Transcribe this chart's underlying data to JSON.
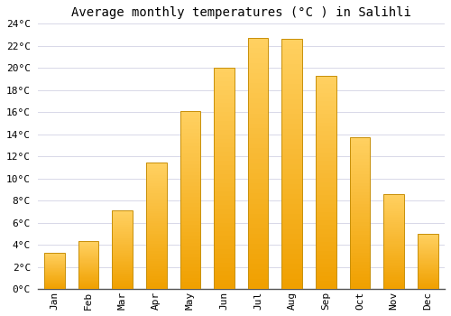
{
  "title": "Average monthly temperatures (°C ) in Salihli",
  "months": [
    "Jan",
    "Feb",
    "Mar",
    "Apr",
    "May",
    "Jun",
    "Jul",
    "Aug",
    "Sep",
    "Oct",
    "Nov",
    "Dec"
  ],
  "values": [
    3.3,
    4.3,
    7.1,
    11.4,
    16.1,
    20.0,
    22.7,
    22.6,
    19.3,
    13.7,
    8.6,
    5.0
  ],
  "bar_color_top": "#FFD060",
  "bar_color_bottom": "#F0A000",
  "bar_edge_color": "#C8900A",
  "background_color": "#ffffff",
  "grid_color": "#d8d8e8",
  "ylim": [
    0,
    24
  ],
  "yticks": [
    0,
    2,
    4,
    6,
    8,
    10,
    12,
    14,
    16,
    18,
    20,
    22,
    24
  ],
  "title_fontsize": 10,
  "tick_fontsize": 8,
  "font_family": "monospace",
  "bar_width": 0.6
}
